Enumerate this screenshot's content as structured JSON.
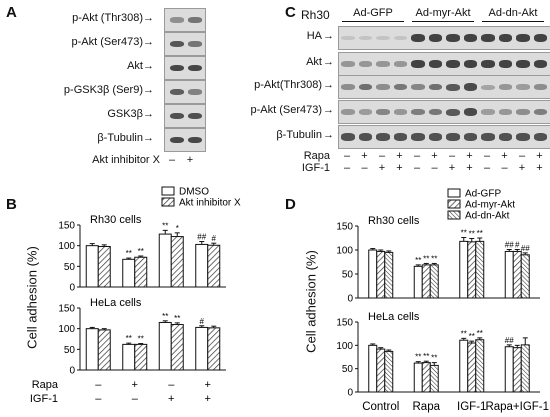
{
  "panel_a": {
    "letter": "A",
    "rows": [
      {
        "label": "p-Akt (Thr308)",
        "bands": [
          0.35,
          0.55
        ]
      },
      {
        "label": "p-Akt (Ser473)",
        "bands": [
          0.75,
          0.55
        ]
      },
      {
        "label": "Akt",
        "bands": [
          0.85,
          0.85
        ]
      },
      {
        "label": "p-GSK3β (Ser9)",
        "bands": [
          0.7,
          0.45
        ]
      },
      {
        "label": "GSK3β",
        "bands": [
          0.8,
          0.8
        ]
      },
      {
        "label": "β-Tubulin",
        "bands": [
          0.85,
          0.85
        ]
      }
    ],
    "treatment_label": "Akt inhibitor X",
    "treatment_signs": [
      "–",
      "+"
    ]
  },
  "panel_c": {
    "letter": "C",
    "cell_line": "Rh30",
    "groups": [
      "Ad-GFP",
      "Ad-myr-Akt",
      "Ad-dn-Akt"
    ],
    "rows": [
      {
        "label": "HA",
        "bands": [
          0.05,
          0.05,
          0.05,
          0.05,
          0.9,
          0.9,
          0.9,
          0.9,
          0.9,
          0.9,
          0.9,
          0.9
        ]
      },
      {
        "label": "Akt",
        "bands": [
          0.35,
          0.35,
          0.35,
          0.35,
          0.9,
          0.9,
          0.9,
          0.9,
          0.9,
          0.9,
          0.9,
          0.9
        ]
      },
      {
        "label": "p-Akt(Thr308)",
        "bands": [
          0.4,
          0.6,
          0.4,
          0.55,
          0.45,
          0.6,
          0.75,
          0.85,
          0.25,
          0.35,
          0.3,
          0.4
        ]
      },
      {
        "label": "p-Akt (Ser473)",
        "bands": [
          0.35,
          0.3,
          0.45,
          0.35,
          0.5,
          0.55,
          0.75,
          0.85,
          0.3,
          0.35,
          0.4,
          0.5
        ]
      },
      {
        "label": "β-Tubulin",
        "bands": [
          0.8,
          0.8,
          0.8,
          0.8,
          0.8,
          0.8,
          0.8,
          0.8,
          0.8,
          0.8,
          0.8,
          0.8
        ]
      }
    ],
    "rapa_label": "Rapa",
    "igf_label": "IGF-1",
    "rapa_signs": [
      "–",
      "+",
      "–",
      "+",
      "–",
      "+",
      "–",
      "+",
      "–",
      "+",
      "–",
      "+"
    ],
    "igf_signs": [
      "–",
      "–",
      "+",
      "+",
      "–",
      "–",
      "+",
      "+",
      "–",
      "–",
      "+",
      "+"
    ]
  },
  "panel_b": {
    "letter": "B",
    "legend": [
      "DMSO",
      "Akt inhibitor X"
    ],
    "ylabel": "Cell adhesion (%)",
    "rapa_label": "Rapa",
    "igf_label": "IGF-1",
    "rapa_signs": [
      "–",
      "+",
      "–",
      "+"
    ],
    "igf_signs": [
      "–",
      "–",
      "+",
      "+"
    ]
  },
  "panel_d": {
    "letter": "D",
    "legend": [
      "Ad-GFP",
      "Ad-myr-Akt",
      "Ad-dn-Akt"
    ],
    "ylabel": "Cell adhesion (%)"
  },
  "chart_data": [
    {
      "type": "bar",
      "title": "Rh30 cells",
      "ylabel": "Cell adhesion (%)",
      "ylim": [
        0,
        150
      ],
      "yticks": [
        0,
        50,
        100,
        150
      ],
      "categories": [
        "– / –",
        "+ / –",
        "– / +",
        "+ / +"
      ],
      "series": [
        {
          "name": "DMSO",
          "values": [
            100,
            67,
            128,
            103
          ],
          "errors": [
            5,
            3,
            9,
            7
          ],
          "marks": [
            "",
            "**",
            "**",
            "##"
          ]
        },
        {
          "name": "Akt inhibitor X",
          "values": [
            98,
            72,
            122,
            101
          ],
          "errors": [
            4,
            3,
            9,
            5
          ],
          "marks": [
            "",
            "**",
            "*",
            "#"
          ]
        }
      ]
    },
    {
      "type": "bar",
      "title": "HeLa cells",
      "ylabel": "Cell adhesion (%)",
      "ylim": [
        0,
        150
      ],
      "yticks": [
        0,
        50,
        100,
        150
      ],
      "categories": [
        "– / –",
        "+ / –",
        "– / +",
        "+ / +"
      ],
      "series": [
        {
          "name": "DMSO",
          "values": [
            100,
            62,
            115,
            103
          ],
          "errors": [
            3,
            3,
            4,
            4
          ],
          "marks": [
            "",
            "**",
            "**",
            "#"
          ]
        },
        {
          "name": "Akt inhibitor X",
          "values": [
            97,
            62,
            110,
            102
          ],
          "errors": [
            3,
            2,
            4,
            4
          ],
          "marks": [
            "",
            "**",
            "**",
            ""
          ]
        }
      ]
    },
    {
      "type": "bar",
      "title": "Rh30 cells",
      "ylabel": "Cell adhesion (%)",
      "ylim": [
        0,
        150
      ],
      "yticks": [
        0,
        50,
        100,
        150
      ],
      "categories": [
        "Control",
        "Rapa",
        "IGF-1",
        "Rapa+IGF-1"
      ],
      "series": [
        {
          "name": "Ad-GFP",
          "values": [
            100,
            66,
            118,
            97
          ],
          "errors": [
            3,
            3,
            8,
            4
          ],
          "marks": [
            "",
            "**",
            "**",
            "##"
          ]
        },
        {
          "name": "Ad-myr-Akt",
          "values": [
            97,
            69,
            117,
            97
          ],
          "errors": [
            3,
            3,
            7,
            4
          ],
          "marks": [
            "",
            "**",
            "**",
            "#"
          ]
        },
        {
          "name": "Ad-dn-Akt",
          "values": [
            95,
            69,
            118,
            90
          ],
          "errors": [
            3,
            3,
            7,
            4
          ],
          "marks": [
            "",
            "**",
            "**",
            "##"
          ]
        }
      ]
    },
    {
      "type": "bar",
      "title": "HeLa cells",
      "ylabel": "Cell adhesion (%)",
      "ylim": [
        0,
        150
      ],
      "yticks": [
        0,
        50,
        100,
        150
      ],
      "categories": [
        "Control",
        "Rapa",
        "IGF-1",
        "Rapa+IGF-1"
      ],
      "series": [
        {
          "name": "Ad-GFP",
          "values": [
            100,
            62,
            111,
            97
          ],
          "errors": [
            3,
            3,
            4,
            4
          ],
          "marks": [
            "",
            "**",
            "**",
            "##"
          ]
        },
        {
          "name": "Ad-myr-Akt",
          "values": [
            92,
            63,
            105,
            95
          ],
          "errors": [
            3,
            3,
            4,
            5
          ],
          "marks": [
            "",
            "**",
            "**",
            ""
          ]
        },
        {
          "name": "Ad-dn-Akt",
          "values": [
            87,
            57,
            112,
            101
          ],
          "errors": [
            3,
            6,
            4,
            15
          ],
          "marks": [
            "",
            "**",
            "**",
            ""
          ]
        }
      ]
    }
  ]
}
